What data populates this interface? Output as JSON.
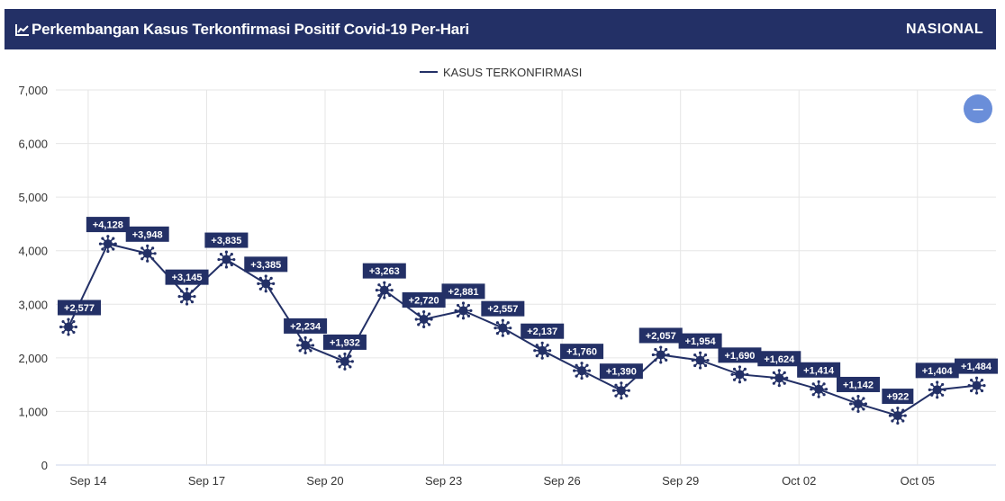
{
  "header": {
    "title": "Perkembangan Kasus Terkonfirmasi Positif Covid-19 Per-Hari",
    "region": "NASIONAL"
  },
  "zoom_button": {
    "label": "–"
  },
  "chart_data": {
    "type": "line",
    "legend": {
      "position": "top-center"
    },
    "series": [
      {
        "name": "KASUS TERKONFIRMASI",
        "color": "#233066",
        "values": [
          2577,
          4128,
          3948,
          3145,
          3835,
          3385,
          2234,
          1932,
          3263,
          2720,
          2881,
          2557,
          2137,
          1760,
          1390,
          2057,
          1954,
          1690,
          1624,
          1414,
          1142,
          922,
          1404,
          1484
        ],
        "labels": [
          "+2,577",
          "+4,128",
          "+3,948",
          "+3,145",
          "+3,835",
          "+3,385",
          "+2,234",
          "+1,932",
          "+3,263",
          "+2,720",
          "+2,881",
          "+2,557",
          "+2,137",
          "+1,760",
          "+1,390",
          "+2,057",
          "+1,954",
          "+1,690",
          "+1,624",
          "+1,414",
          "+1,142",
          "+922",
          "+1,404",
          "+1,484"
        ]
      }
    ],
    "x_ticks": [
      "Sep 14",
      "Sep 17",
      "Sep 20",
      "Sep 23",
      "Sep 26",
      "Sep 29",
      "Oct 02",
      "Oct 05"
    ],
    "y_ticks": [
      "0",
      "1,000",
      "2,000",
      "3,000",
      "4,000",
      "5,000",
      "6,000",
      "7,000"
    ],
    "ylim": [
      0,
      7000
    ],
    "grid": true
  }
}
